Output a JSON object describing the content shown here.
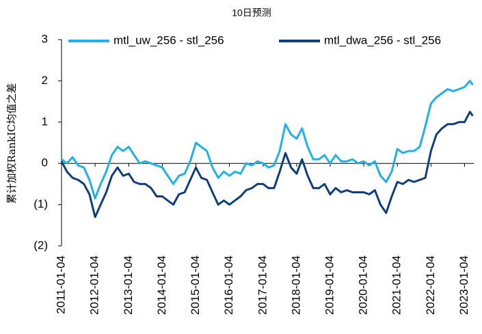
{
  "chart_data": {
    "type": "line",
    "title": "10日预测",
    "ylabel": "累计加权RankIC均值之差",
    "legend": "top",
    "x": [
      "2011-01-04",
      "2011-03-04",
      "2011-05-04",
      "2011-07-04",
      "2011-09-04",
      "2011-11-04",
      "2012-01-04",
      "2012-03-04",
      "2012-05-04",
      "2012-07-04",
      "2012-09-04",
      "2012-11-04",
      "2013-01-04",
      "2013-03-04",
      "2013-05-04",
      "2013-07-04",
      "2013-09-04",
      "2013-11-04",
      "2014-01-04",
      "2014-03-04",
      "2014-05-04",
      "2014-07-04",
      "2014-09-04",
      "2014-11-04",
      "2015-01-04",
      "2015-03-04",
      "2015-05-04",
      "2015-07-04",
      "2015-09-04",
      "2015-11-04",
      "2016-01-04",
      "2016-03-04",
      "2016-05-04",
      "2016-07-04",
      "2016-09-04",
      "2016-11-04",
      "2017-01-04",
      "2017-03-04",
      "2017-05-04",
      "2017-07-04",
      "2017-09-04",
      "2017-11-04",
      "2018-01-04",
      "2018-03-04",
      "2018-05-04",
      "2018-07-04",
      "2018-09-04",
      "2018-11-04",
      "2019-01-04",
      "2019-03-04",
      "2019-05-04",
      "2019-07-04",
      "2019-09-04",
      "2019-11-04",
      "2020-01-04",
      "2020-03-04",
      "2020-05-04",
      "2020-07-04",
      "2020-09-04",
      "2020-11-04",
      "2021-01-04",
      "2021-03-04",
      "2021-05-04",
      "2021-07-04",
      "2021-09-04",
      "2021-11-04",
      "2022-01-04",
      "2022-03-04",
      "2022-05-04",
      "2022-07-04",
      "2022-09-04",
      "2022-11-04",
      "2023-01-04",
      "2023-03-04",
      "2023-04-04"
    ],
    "series": [
      {
        "name": "mtl_uw_256 - stl_256",
        "color": "#1fb0e6",
        "values": [
          0.1,
          0.0,
          0.15,
          -0.05,
          -0.1,
          -0.4,
          -0.85,
          -0.5,
          -0.2,
          0.2,
          0.4,
          0.3,
          0.4,
          0.2,
          0.0,
          0.05,
          0.0,
          -0.05,
          -0.1,
          -0.3,
          -0.5,
          -0.3,
          -0.25,
          0.05,
          0.5,
          0.4,
          0.3,
          -0.1,
          -0.35,
          -0.2,
          -0.3,
          -0.2,
          -0.25,
          0.0,
          -0.05,
          0.05,
          0.0,
          -0.1,
          -0.05,
          0.3,
          0.95,
          0.7,
          0.6,
          0.85,
          0.4,
          0.1,
          0.1,
          0.2,
          0.0,
          0.2,
          0.05,
          0.05,
          0.1,
          0.0,
          0.05,
          -0.05,
          0.05,
          -0.3,
          -0.45,
          -0.2,
          0.35,
          0.25,
          0.3,
          0.3,
          0.4,
          0.9,
          1.45,
          1.6,
          1.7,
          1.8,
          1.75,
          1.8,
          1.85,
          2.0,
          1.9
        ]
      },
      {
        "name": "mtl_dwa_256 - stl_256",
        "color": "#0d3d7a",
        "values": [
          0.05,
          -0.2,
          -0.35,
          -0.4,
          -0.5,
          -0.75,
          -1.3,
          -1.0,
          -0.7,
          -0.3,
          -0.1,
          -0.3,
          -0.25,
          -0.45,
          -0.5,
          -0.5,
          -0.6,
          -0.8,
          -0.8,
          -0.9,
          -1.0,
          -0.75,
          -0.7,
          -0.4,
          -0.1,
          -0.35,
          -0.4,
          -0.7,
          -1.0,
          -0.9,
          -1.0,
          -0.9,
          -0.8,
          -0.65,
          -0.6,
          -0.5,
          -0.5,
          -0.6,
          -0.6,
          -0.2,
          0.25,
          -0.1,
          -0.25,
          0.1,
          -0.3,
          -0.6,
          -0.6,
          -0.5,
          -0.75,
          -0.6,
          -0.7,
          -0.65,
          -0.7,
          -0.7,
          -0.7,
          -0.75,
          -0.65,
          -1.0,
          -1.2,
          -0.8,
          -0.45,
          -0.5,
          -0.4,
          -0.45,
          -0.4,
          -0.35,
          0.3,
          0.7,
          0.85,
          0.95,
          0.95,
          1.0,
          1.0,
          1.25,
          1.15
        ]
      }
    ],
    "xlim": [
      "2011-01-04",
      "2023-04-15"
    ],
    "xticks": [
      "2011-01-04",
      "2012-01-04",
      "2013-01-04",
      "2014-01-04",
      "2015-01-04",
      "2016-01-04",
      "2017-01-04",
      "2018-01-04",
      "2019-01-04",
      "2020-01-04",
      "2021-01-04",
      "2022-01-04",
      "2023-01-04"
    ],
    "ylim": [
      -2,
      3
    ],
    "yticks": [
      {
        "value": -2,
        "label": "(2)"
      },
      {
        "value": -1,
        "label": "(1)"
      },
      0,
      1,
      2,
      3
    ]
  }
}
